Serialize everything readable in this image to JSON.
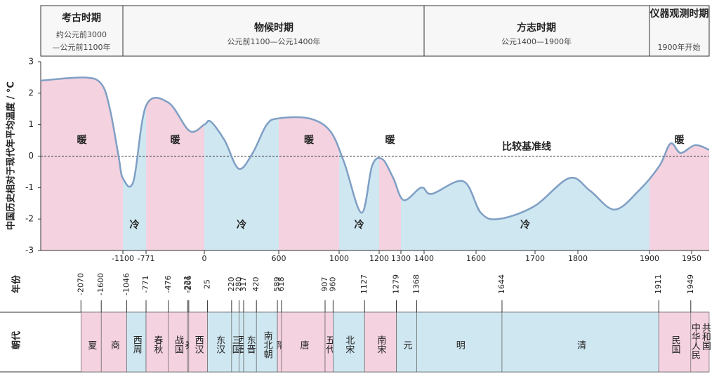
{
  "header": {
    "periods": [
      {
        "title": "考古时期",
        "subtitle": [
          "约公元前3000",
          "—公元前1100年"
        ]
      },
      {
        "title": "物候时期",
        "subtitle": [
          "公元前1100—公元1400年"
        ]
      },
      {
        "title": "方志时期",
        "subtitle": [
          "公元1400—1900年"
        ]
      },
      {
        "title": "仪器观测时期",
        "subtitle": [
          "1900年开始"
        ]
      }
    ]
  },
  "chart_data": {
    "type": "line",
    "y_label": "中国历史相对于现代年平均温度 / °C",
    "baseline_label": "比较基准线",
    "x": [
      -3000,
      -2000,
      -1600,
      -1400,
      -1200,
      -1100,
      -950,
      -771,
      -474,
      -195,
      0,
      51,
      164,
      277,
      390,
      503,
      600,
      800,
      940,
      1025,
      1112,
      1165,
      1215,
      1265,
      1312,
      1388,
      1430,
      1551,
      1608,
      1638,
      1698,
      1780,
      1817,
      1851,
      1885,
      1912,
      1925,
      1937,
      1954,
      1970
    ],
    "values": [
      2.4,
      2.5,
      2.3,
      1.5,
      0,
      -0.7,
      -0.8,
      1.6,
      1.7,
      0.8,
      1.0,
      1.1,
      0.5,
      -0.4,
      0.1,
      1.0,
      1.2,
      1.2,
      0.8,
      -0.2,
      -1.8,
      -0.3,
      -0.1,
      -0.7,
      -1.4,
      -1.0,
      -1.2,
      -0.8,
      -1.8,
      -2.0,
      -1.6,
      -0.7,
      -1.1,
      -1.7,
      -1.1,
      -0.3,
      0.4,
      0.1,
      0.35,
      0.2
    ],
    "color": "#7f9fc4",
    "xlim": [
      -3000,
      1970
    ],
    "xticks": [
      -1100,
      -771,
      0,
      600,
      1000,
      1200,
      1300,
      1400,
      1600,
      1700,
      1800,
      1900,
      1950
    ],
    "ylim": [
      -3,
      3
    ],
    "yticks": [
      -3,
      -2,
      -1,
      0,
      1,
      2,
      3
    ],
    "regions": {
      "bounds": [
        -1100,
        -771,
        0,
        600,
        1000,
        1200,
        1300,
        1900
      ],
      "labels": [
        "暖",
        "冷",
        "暖",
        "冷",
        "暖",
        "冷",
        "暖",
        "冷",
        "暖"
      ]
    },
    "region_colors": {
      "暖": "#f4d2e0",
      "冷": "#cfe7f1"
    }
  },
  "year_row_label": "年份",
  "dynasty_row_label": "朝代",
  "dynasties": {
    "years": [
      -2070,
      -1600,
      -1046,
      -771,
      -476,
      -221,
      -206,
      25,
      220,
      280,
      317,
      420,
      589,
      618,
      907,
      960,
      1127,
      1279,
      1368,
      1644,
      1911,
      1949
    ],
    "names": [
      "夏",
      "商",
      "西周",
      "春秋",
      "战国",
      "秦",
      "西汉",
      "东汉",
      "三国",
      "西晋",
      "东晋",
      "南北朝",
      "隋",
      "唐",
      "五代",
      "北宋",
      "南宋",
      "元",
      "明",
      "清",
      "民国",
      "中华人民共和国"
    ]
  }
}
